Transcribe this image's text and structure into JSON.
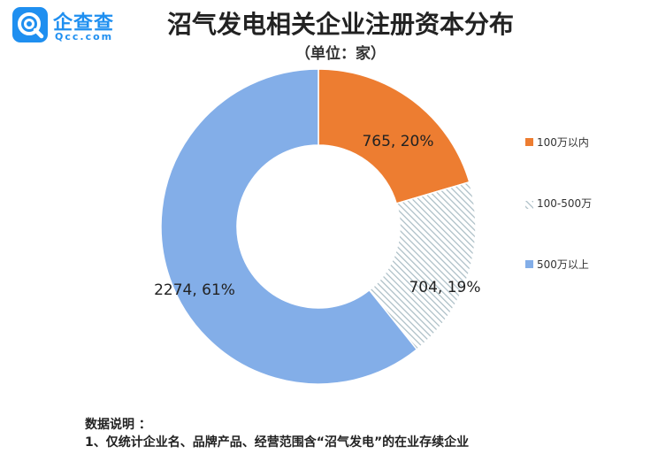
{
  "brand": {
    "name": "企查查",
    "domain": "Qcc.com",
    "color": "#1f8ff0"
  },
  "chart_data": {
    "type": "pie",
    "variant": "donut",
    "title": "沼气发电相关企业注册资本分布",
    "subtitle": "（单位：家）",
    "series": [
      {
        "name": "100万以内",
        "value": 765,
        "percent": 20,
        "label": "765, 20%",
        "color": "#ed7d31",
        "pattern": "solid"
      },
      {
        "name": "100-500万",
        "value": 704,
        "percent": 19,
        "label": "704, 19%",
        "color": "#c4d4da",
        "pattern": "hatched"
      },
      {
        "name": "500万以上",
        "value": 2274,
        "percent": 61,
        "label": "2274, 61%",
        "color": "#83aee8",
        "pattern": "solid"
      }
    ],
    "legend_position": "right"
  },
  "notes": {
    "heading": "数据说明 ：",
    "lines": [
      "1、仅统计企业名、品牌产品、经营范围含“沼气发电”的在业存续企业"
    ]
  }
}
